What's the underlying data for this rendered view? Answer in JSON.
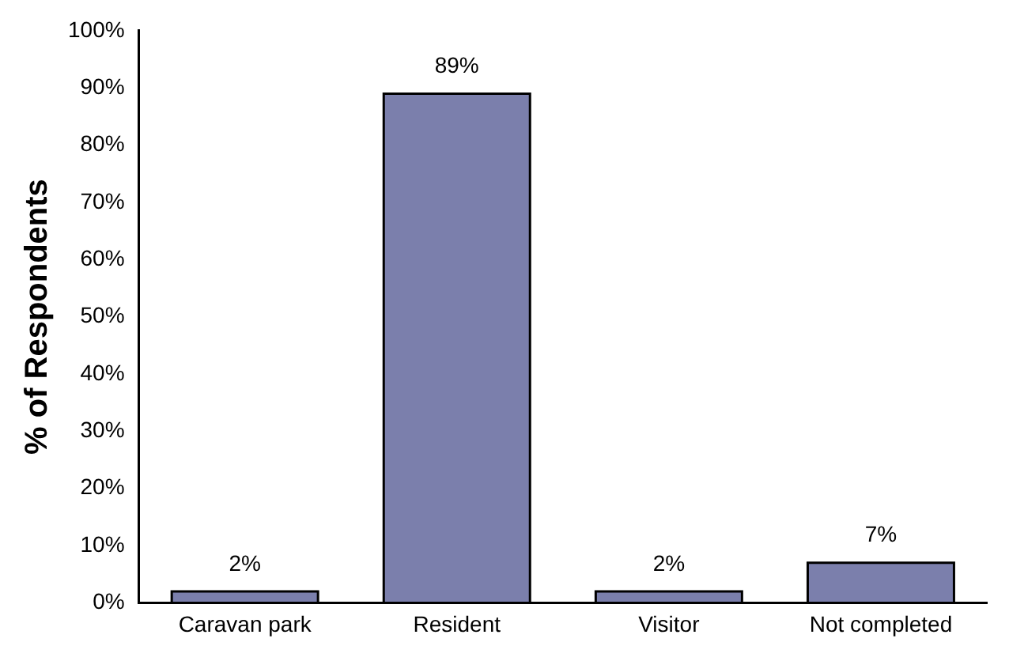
{
  "chart_data": {
    "type": "bar",
    "ylabel": "% of Respondents",
    "categories": [
      "Caravan park",
      "Resident",
      "Visitor",
      "Not completed"
    ],
    "values": [
      2,
      89,
      2,
      7
    ],
    "value_labels": [
      "2%",
      "89%",
      "2%",
      "7%"
    ],
    "color": "#7b7fac",
    "ylim": [
      0,
      100
    ],
    "yticks": [
      {
        "value": 0,
        "label": "0%"
      },
      {
        "value": 10,
        "label": "10%"
      },
      {
        "value": 20,
        "label": "20%"
      },
      {
        "value": 30,
        "label": "30%"
      },
      {
        "value": 40,
        "label": "40%"
      },
      {
        "value": 50,
        "label": "50%"
      },
      {
        "value": 60,
        "label": "60%"
      },
      {
        "value": 70,
        "label": "70%"
      },
      {
        "value": 80,
        "label": "80%"
      },
      {
        "value": 90,
        "label": "90%"
      },
      {
        "value": 100,
        "label": "100%"
      }
    ],
    "grid": false,
    "legend": false
  }
}
